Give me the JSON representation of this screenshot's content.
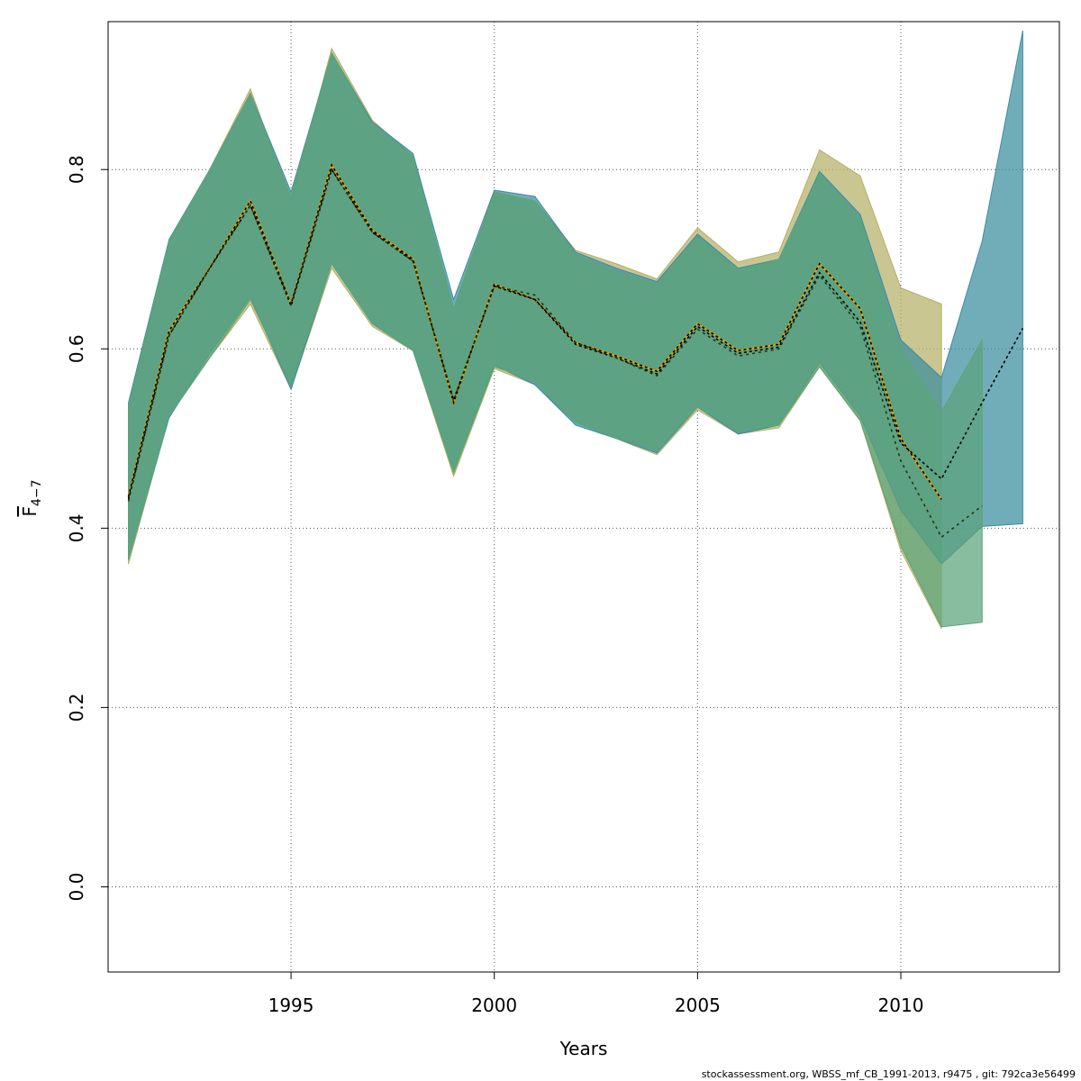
{
  "chart_data": {
    "type": "area",
    "xlabel": "Years",
    "ylabel_main": "F",
    "ylabel_sub": "4−7",
    "x_ticks": [
      1995,
      2000,
      2005,
      2010
    ],
    "y_ticks": [
      "0.0",
      "0.2",
      "0.4",
      "0.6",
      "0.8"
    ],
    "xlim": [
      1990.5,
      2013.9
    ],
    "ylim": [
      -0.095,
      0.965
    ],
    "grid": true,
    "series": [
      {
        "color": "#B4B066",
        "years": [
          1991,
          1992,
          1993,
          1994,
          1995,
          1996,
          1997,
          1998,
          1999,
          2000,
          2001,
          2002,
          2003,
          2004,
          2005,
          2006,
          2007,
          2008,
          2009,
          2010,
          2011
        ],
        "upper": [
          0.53,
          0.72,
          0.8,
          0.89,
          0.765,
          0.935,
          0.855,
          0.815,
          0.645,
          0.775,
          0.765,
          0.71,
          0.695,
          0.678,
          0.735,
          0.697,
          0.708,
          0.822,
          0.793,
          0.668,
          0.65
        ],
        "lower": [
          0.36,
          0.525,
          0.59,
          0.65,
          0.555,
          0.69,
          0.625,
          0.598,
          0.458,
          0.578,
          0.56,
          0.518,
          0.5,
          0.482,
          0.532,
          0.505,
          0.512,
          0.58,
          0.52,
          0.375,
          0.288
        ],
        "mid": [
          0.435,
          0.62,
          0.69,
          0.765,
          0.65,
          0.805,
          0.732,
          0.7,
          0.54,
          0.672,
          0.655,
          0.607,
          0.592,
          0.575,
          0.628,
          0.598,
          0.605,
          0.695,
          0.645,
          0.5,
          0.432
        ]
      },
      {
        "color": "#3A8E9E",
        "years": [
          1991,
          1992,
          1993,
          1994,
          1995,
          1996,
          1997,
          1998,
          1999,
          2000,
          2001,
          2002,
          2003,
          2004,
          2005,
          2006,
          2007,
          2008,
          2009,
          2010,
          2011,
          2012,
          2013
        ],
        "upper": [
          0.54,
          0.722,
          0.8,
          0.885,
          0.775,
          0.93,
          0.853,
          0.818,
          0.655,
          0.777,
          0.77,
          0.708,
          0.69,
          0.675,
          0.728,
          0.69,
          0.7,
          0.798,
          0.75,
          0.61,
          0.568,
          0.72,
          0.955
        ],
        "lower": [
          0.365,
          0.523,
          0.595,
          0.658,
          0.555,
          0.695,
          0.628,
          0.598,
          0.462,
          0.582,
          0.56,
          0.515,
          0.5,
          0.484,
          0.535,
          0.505,
          0.515,
          0.585,
          0.525,
          0.42,
          0.36,
          0.402,
          0.405
        ],
        "mid": [
          0.432,
          0.615,
          0.69,
          0.76,
          0.648,
          0.8,
          0.73,
          0.698,
          0.543,
          0.67,
          0.655,
          0.605,
          0.59,
          0.572,
          0.625,
          0.595,
          0.602,
          0.685,
          0.63,
          0.495,
          0.455,
          0.54,
          0.623
        ]
      },
      {
        "color": "#5BA47A",
        "years": [
          1991,
          1992,
          1993,
          1994,
          1995,
          1996,
          1997,
          1998,
          1999,
          2000,
          2001,
          2002,
          2003,
          2004,
          2005,
          2006,
          2007,
          2008,
          2009,
          2010,
          2011,
          2012
        ],
        "upper": [
          0.535,
          0.72,
          0.8,
          0.885,
          0.77,
          0.93,
          0.85,
          0.815,
          0.645,
          0.775,
          0.765,
          0.705,
          0.685,
          0.672,
          0.725,
          0.688,
          0.7,
          0.795,
          0.745,
          0.6,
          0.53,
          0.61
        ],
        "lower": [
          0.365,
          0.525,
          0.59,
          0.655,
          0.56,
          0.695,
          0.628,
          0.598,
          0.462,
          0.58,
          0.565,
          0.518,
          0.5,
          0.488,
          0.535,
          0.508,
          0.515,
          0.58,
          0.52,
          0.38,
          0.29,
          0.295
        ],
        "mid": [
          0.43,
          0.615,
          0.69,
          0.76,
          0.65,
          0.8,
          0.73,
          0.698,
          0.542,
          0.67,
          0.66,
          0.607,
          0.59,
          0.57,
          0.622,
          0.592,
          0.6,
          0.682,
          0.625,
          0.475,
          0.39,
          0.425
        ]
      }
    ],
    "footer": "stockassessment.org, WBSS_mf_CB_1991-2013, r9475 , git: 792ca3e56499"
  }
}
